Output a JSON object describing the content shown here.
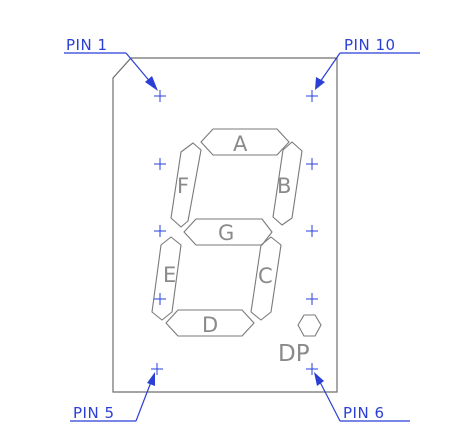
{
  "segments": {
    "a": "A",
    "b": "B",
    "c": "C",
    "d": "D",
    "e": "E",
    "f": "F",
    "g": "G",
    "dp": "DP"
  },
  "pins": {
    "pin1": "PIN 1",
    "pin10": "PIN 10",
    "pin5": "PIN 5",
    "pin6": "PIN 6"
  },
  "colors": {
    "annotation": "#2b3fd6",
    "outline": "#6f6f6f",
    "segment_label": "#8a8a8a",
    "background": "#ffffff"
  }
}
